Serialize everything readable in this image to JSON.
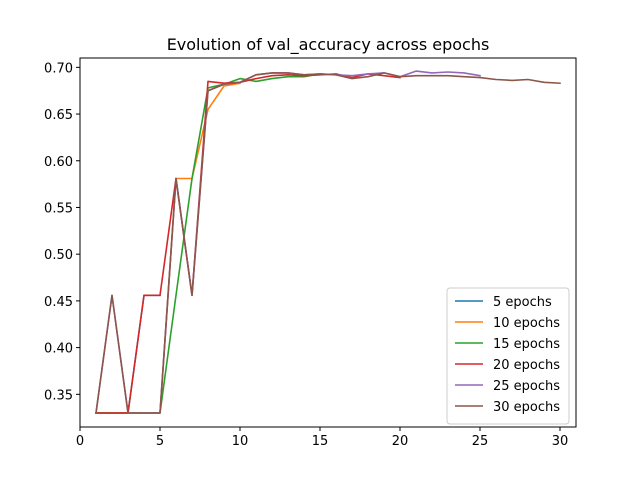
{
  "chart_data": {
    "type": "line",
    "title": "Evolution of val_accuracy across epochs",
    "xlabel": "",
    "ylabel": "",
    "xlim": [
      0,
      31
    ],
    "ylim": [
      0.315,
      0.71
    ],
    "xticks": [
      0,
      5,
      10,
      15,
      20,
      25,
      30
    ],
    "yticks": [
      0.35,
      0.4,
      0.45,
      0.5,
      0.55,
      0.6,
      0.65,
      0.7
    ],
    "grid": false,
    "legend_position": "lower-right",
    "series": [
      {
        "name": "5 epochs",
        "color": "#1f77b4",
        "x": [
          1,
          2,
          3,
          4,
          5
        ],
        "y": [
          0.33,
          0.33,
          0.33,
          0.456,
          0.456
        ]
      },
      {
        "name": "10 epochs",
        "color": "#ff7f0e",
        "x": [
          1,
          2,
          3,
          4,
          5,
          6,
          7,
          8,
          9,
          10
        ],
        "y": [
          0.33,
          0.33,
          0.33,
          0.33,
          0.33,
          0.581,
          0.581,
          0.655,
          0.68,
          0.683
        ]
      },
      {
        "name": "15 epochs",
        "color": "#2ca02c",
        "x": [
          1,
          2,
          3,
          4,
          5,
          6,
          7,
          8,
          9,
          10,
          11,
          12,
          13,
          14,
          15
        ],
        "y": [
          0.33,
          0.33,
          0.33,
          0.33,
          0.33,
          0.456,
          0.581,
          0.678,
          0.682,
          0.688,
          0.685,
          0.688,
          0.69,
          0.69,
          0.693
        ]
      },
      {
        "name": "20 epochs",
        "color": "#d62728",
        "x": [
          1,
          2,
          3,
          4,
          5,
          6,
          7,
          8,
          9,
          10,
          11,
          12,
          13,
          14,
          15,
          16,
          17,
          18,
          19,
          20
        ],
        "y": [
          0.33,
          0.33,
          0.33,
          0.456,
          0.456,
          0.581,
          0.456,
          0.685,
          0.683,
          0.684,
          0.688,
          0.691,
          0.692,
          0.691,
          0.692,
          0.693,
          0.689,
          0.693,
          0.691,
          0.689
        ]
      },
      {
        "name": "25 epochs",
        "color": "#9467bd",
        "x": [
          1,
          2,
          3,
          4,
          5,
          6,
          7,
          8,
          9,
          10,
          11,
          12,
          13,
          14,
          15,
          16,
          17,
          18,
          19,
          20,
          21,
          22,
          23,
          24,
          25
        ],
        "y": [
          0.33,
          0.456,
          0.33,
          0.33,
          0.33,
          0.581,
          0.456,
          0.675,
          0.682,
          0.684,
          0.692,
          0.694,
          0.694,
          0.692,
          0.693,
          0.692,
          0.691,
          0.693,
          0.694,
          0.69,
          0.696,
          0.694,
          0.695,
          0.694,
          0.691
        ]
      },
      {
        "name": "30 epochs",
        "color": "#8c564b",
        "x": [
          1,
          2,
          3,
          4,
          5,
          6,
          7,
          8,
          9,
          10,
          11,
          12,
          13,
          14,
          15,
          16,
          17,
          18,
          19,
          20,
          21,
          22,
          23,
          24,
          25,
          26,
          27,
          28,
          29,
          30
        ],
        "y": [
          0.33,
          0.456,
          0.33,
          0.33,
          0.33,
          0.581,
          0.456,
          0.675,
          0.682,
          0.684,
          0.692,
          0.694,
          0.694,
          0.692,
          0.693,
          0.692,
          0.688,
          0.69,
          0.694,
          0.69,
          0.691,
          0.691,
          0.691,
          0.69,
          0.689,
          0.687,
          0.686,
          0.687,
          0.684,
          0.683
        ]
      }
    ]
  }
}
